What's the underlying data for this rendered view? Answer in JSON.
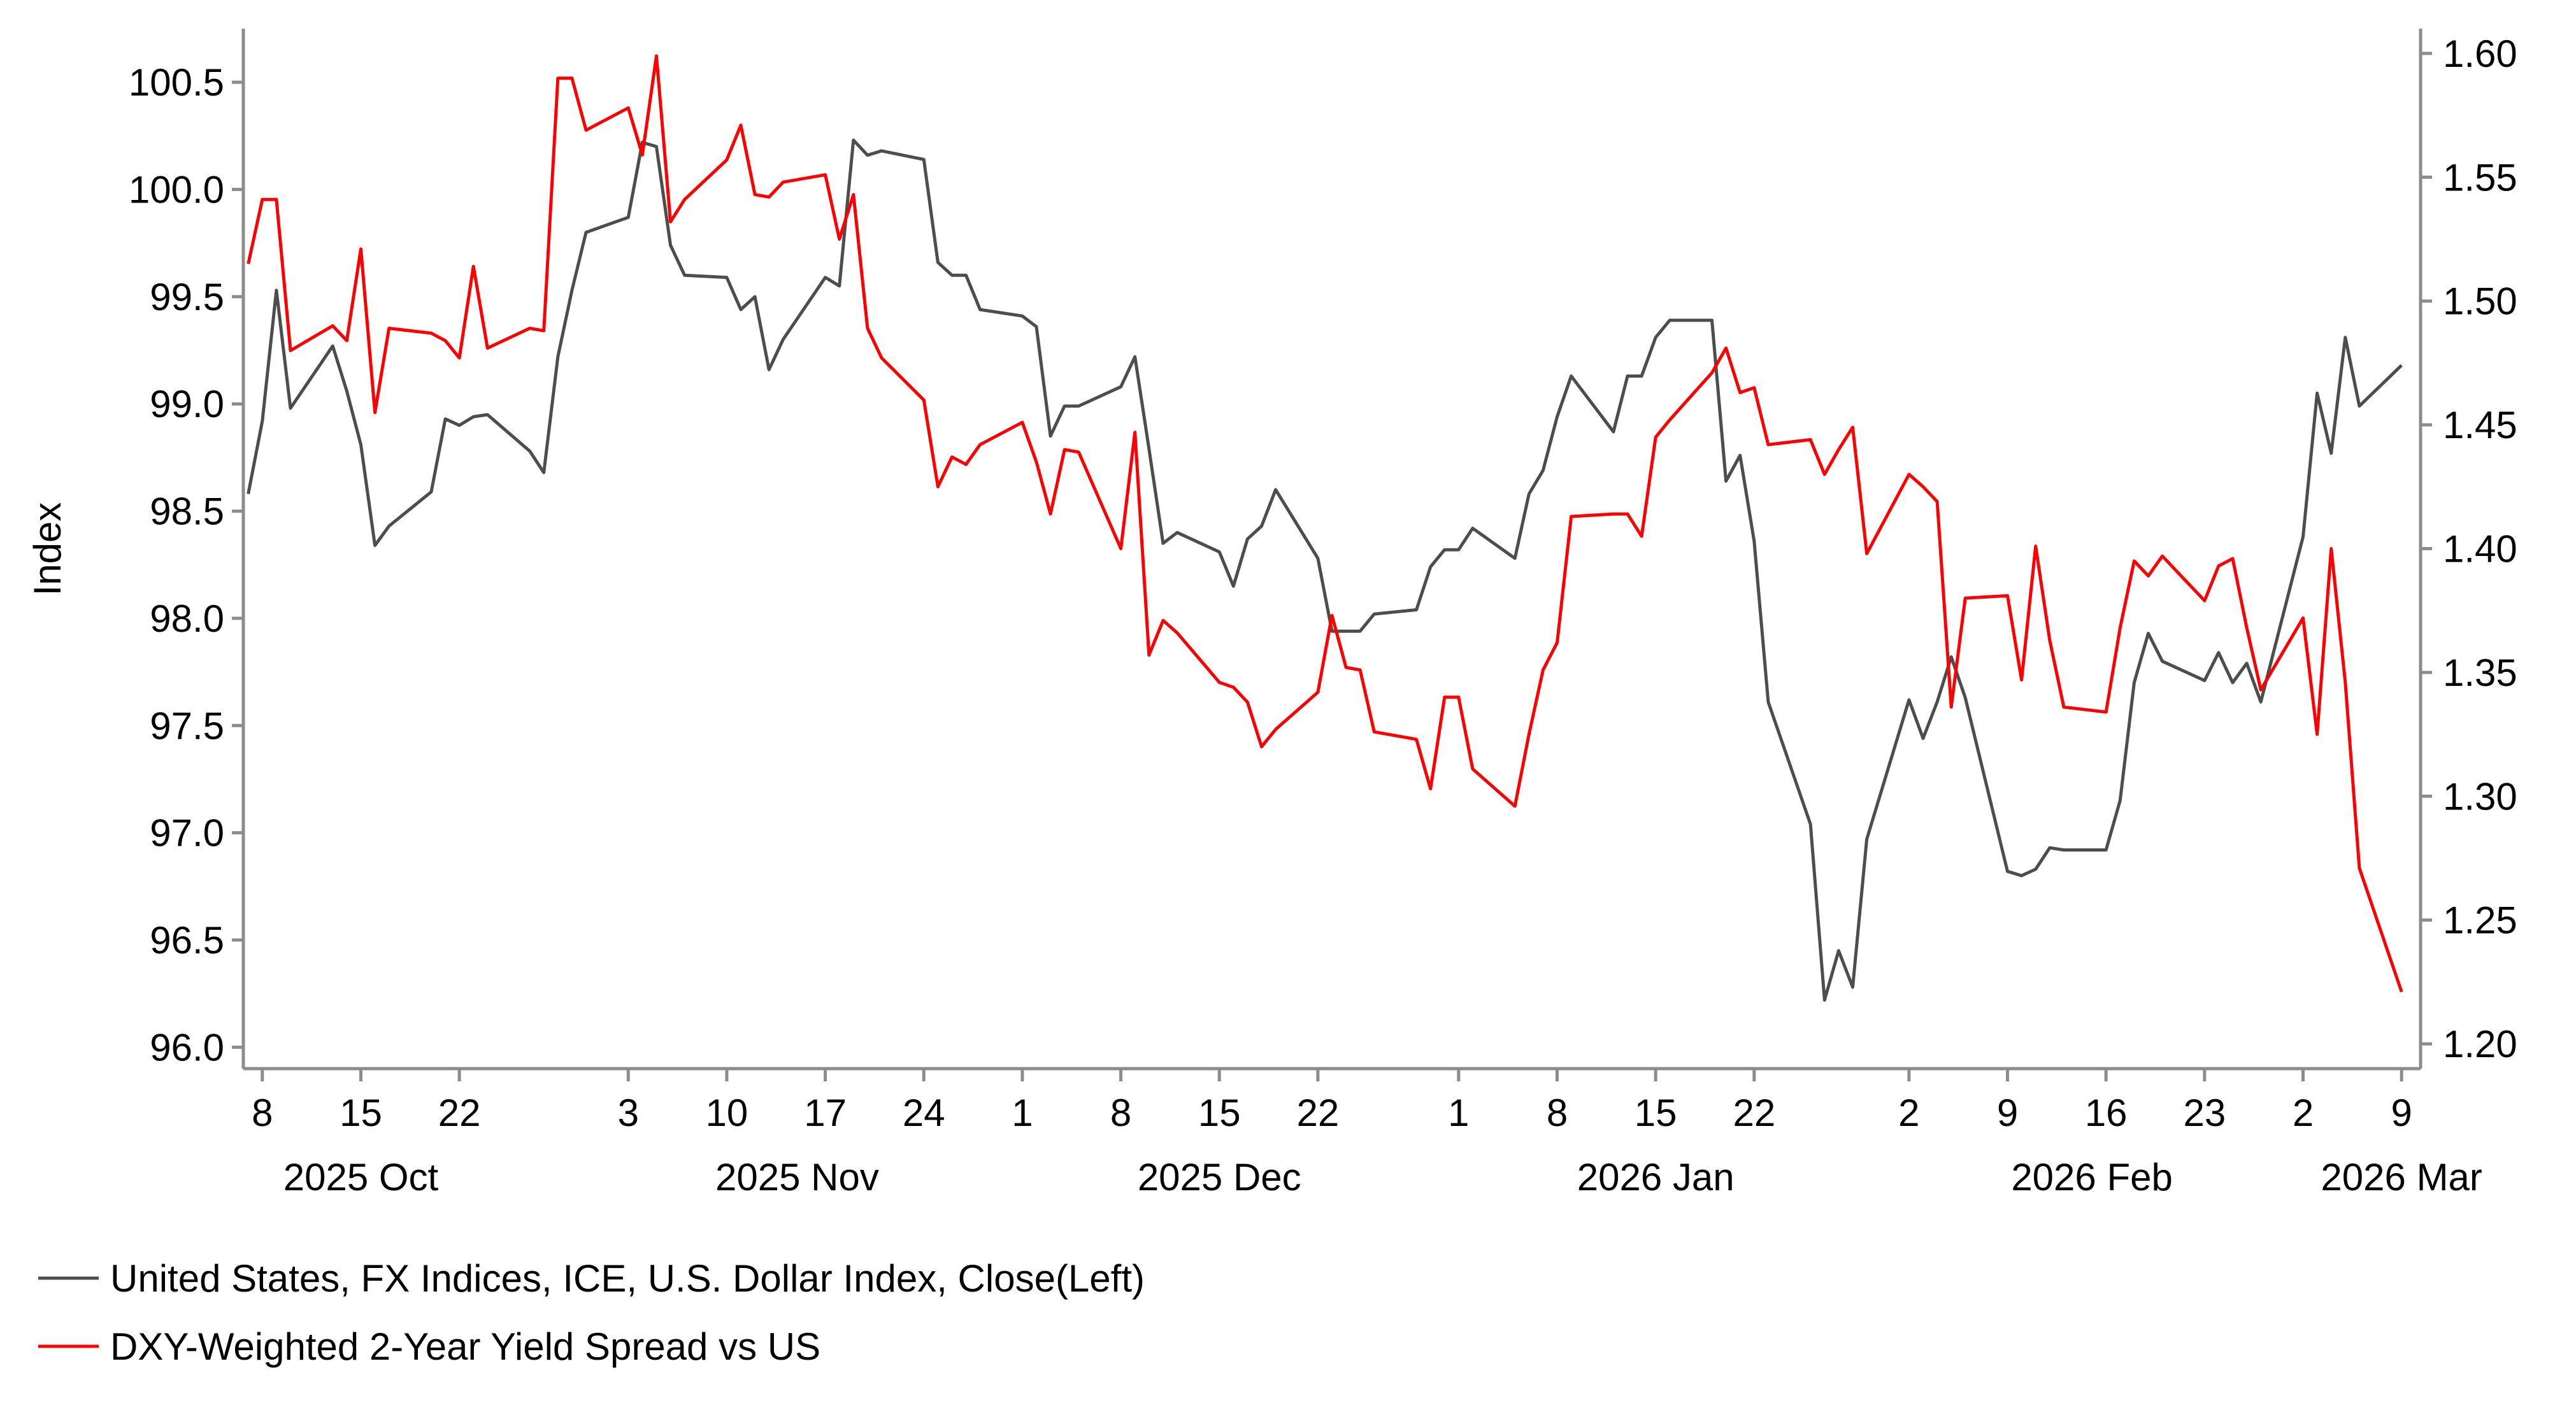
{
  "chart_data": {
    "type": "line",
    "left_axis": {
      "label": "Index",
      "ylim": [
        95.9,
        100.75
      ],
      "ticks": [
        "96.0",
        "96.5",
        "97.0",
        "97.5",
        "98.0",
        "98.5",
        "99.0",
        "99.5",
        "100.0",
        "100.5"
      ]
    },
    "right_axis": {
      "ylim": [
        1.19,
        1.61
      ],
      "ticks": [
        "1.20",
        "1.25",
        "1.30",
        "1.35",
        "1.40",
        "1.45",
        "1.50",
        "1.55",
        "1.60"
      ]
    },
    "x_axis": {
      "range": [
        "2025-10-07",
        "2026-03-10"
      ],
      "day_ticks": [
        {
          "date": "2025-10-08",
          "label": "8"
        },
        {
          "date": "2025-10-15",
          "label": "15"
        },
        {
          "date": "2025-10-22",
          "label": "22"
        },
        {
          "date": "2025-11-03",
          "label": "3"
        },
        {
          "date": "2025-11-10",
          "label": "10"
        },
        {
          "date": "2025-11-17",
          "label": "17"
        },
        {
          "date": "2025-11-24",
          "label": "24"
        },
        {
          "date": "2025-12-01",
          "label": "1"
        },
        {
          "date": "2025-12-08",
          "label": "8"
        },
        {
          "date": "2025-12-15",
          "label": "15"
        },
        {
          "date": "2025-12-22",
          "label": "22"
        },
        {
          "date": "2026-01-01",
          "label": "1"
        },
        {
          "date": "2026-01-08",
          "label": "8"
        },
        {
          "date": "2026-01-15",
          "label": "15"
        },
        {
          "date": "2026-01-22",
          "label": "22"
        },
        {
          "date": "2026-02-02",
          "label": "2"
        },
        {
          "date": "2026-02-09",
          "label": "9"
        },
        {
          "date": "2026-02-16",
          "label": "16"
        },
        {
          "date": "2026-02-23",
          "label": "23"
        },
        {
          "date": "2026-03-02",
          "label": "2"
        },
        {
          "date": "2026-03-09",
          "label": "9"
        }
      ],
      "month_labels": [
        {
          "date": "2025-10-15",
          "label": "2025 Oct"
        },
        {
          "date": "2025-11-15",
          "label": "2025 Nov"
        },
        {
          "date": "2025-12-15",
          "label": "2025 Dec"
        },
        {
          "date": "2026-01-15",
          "label": "2026 Jan"
        },
        {
          "date": "2026-02-15",
          "label": "2026 Feb"
        },
        {
          "date": "2026-03-09",
          "label": "2026 Mar"
        }
      ]
    },
    "series": [
      {
        "name": "United States, FX Indices, ICE, U.S. Dollar Index, Close(Left)",
        "axis": "left",
        "color": "#4d4d4d",
        "points": [
          [
            "2025-10-07",
            98.58
          ],
          [
            "2025-10-08",
            98.92
          ],
          [
            "2025-10-09",
            99.53
          ],
          [
            "2025-10-10",
            98.98
          ],
          [
            "2025-10-13",
            99.27
          ],
          [
            "2025-10-14",
            99.06
          ],
          [
            "2025-10-15",
            98.81
          ],
          [
            "2025-10-16",
            98.34
          ],
          [
            "2025-10-17",
            98.43
          ],
          [
            "2025-10-20",
            98.59
          ],
          [
            "2025-10-21",
            98.93
          ],
          [
            "2025-10-22",
            98.9
          ],
          [
            "2025-10-23",
            98.94
          ],
          [
            "2025-10-24",
            98.95
          ],
          [
            "2025-10-27",
            98.78
          ],
          [
            "2025-10-28",
            98.68
          ],
          [
            "2025-10-29",
            99.22
          ],
          [
            "2025-10-30",
            99.53
          ],
          [
            "2025-10-31",
            99.8
          ],
          [
            "2025-11-03",
            99.87
          ],
          [
            "2025-11-04",
            100.22
          ],
          [
            "2025-11-05",
            100.2
          ],
          [
            "2025-11-06",
            99.74
          ],
          [
            "2025-11-07",
            99.6
          ],
          [
            "2025-11-10",
            99.59
          ],
          [
            "2025-11-11",
            99.44
          ],
          [
            "2025-11-12",
            99.5
          ],
          [
            "2025-11-13",
            99.16
          ],
          [
            "2025-11-14",
            99.3
          ],
          [
            "2025-11-17",
            99.59
          ],
          [
            "2025-11-18",
            99.55
          ],
          [
            "2025-11-19",
            100.23
          ],
          [
            "2025-11-20",
            100.16
          ],
          [
            "2025-11-21",
            100.18
          ],
          [
            "2025-11-24",
            100.14
          ],
          [
            "2025-11-25",
            99.66
          ],
          [
            "2025-11-26",
            99.6
          ],
          [
            "2025-11-27",
            99.6
          ],
          [
            "2025-11-28",
            99.44
          ],
          [
            "2025-12-01",
            99.41
          ],
          [
            "2025-12-02",
            99.36
          ],
          [
            "2025-12-03",
            98.85
          ],
          [
            "2025-12-04",
            98.99
          ],
          [
            "2025-12-05",
            98.99
          ],
          [
            "2025-12-08",
            99.08
          ],
          [
            "2025-12-09",
            99.22
          ],
          [
            "2025-12-10",
            98.79
          ],
          [
            "2025-12-11",
            98.35
          ],
          [
            "2025-12-12",
            98.4
          ],
          [
            "2025-12-15",
            98.31
          ],
          [
            "2025-12-16",
            98.15
          ],
          [
            "2025-12-17",
            98.37
          ],
          [
            "2025-12-18",
            98.43
          ],
          [
            "2025-12-19",
            98.6
          ],
          [
            "2025-12-22",
            98.28
          ],
          [
            "2025-12-23",
            97.94
          ],
          [
            "2025-12-24",
            97.94
          ],
          [
            "2025-12-25",
            97.94
          ],
          [
            "2025-12-26",
            98.02
          ],
          [
            "2025-12-29",
            98.04
          ],
          [
            "2025-12-30",
            98.24
          ],
          [
            "2025-12-31",
            98.32
          ],
          [
            "2026-01-01",
            98.32
          ],
          [
            "2026-01-02",
            98.42
          ],
          [
            "2026-01-05",
            98.28
          ],
          [
            "2026-01-06",
            98.58
          ],
          [
            "2026-01-07",
            98.69
          ],
          [
            "2026-01-08",
            98.94
          ],
          [
            "2026-01-09",
            99.13
          ],
          [
            "2026-01-12",
            98.87
          ],
          [
            "2026-01-13",
            99.13
          ],
          [
            "2026-01-14",
            99.13
          ],
          [
            "2026-01-15",
            99.31
          ],
          [
            "2026-01-16",
            99.39
          ],
          [
            "2026-01-19",
            99.39
          ],
          [
            "2026-01-20",
            98.64
          ],
          [
            "2026-01-21",
            98.76
          ],
          [
            "2026-01-22",
            98.36
          ],
          [
            "2026-01-23",
            97.61
          ],
          [
            "2026-01-26",
            97.04
          ],
          [
            "2026-01-27",
            96.22
          ],
          [
            "2026-01-28",
            96.45
          ],
          [
            "2026-01-29",
            96.28
          ],
          [
            "2026-01-30",
            96.97
          ],
          [
            "2026-02-02",
            97.62
          ],
          [
            "2026-02-03",
            97.44
          ],
          [
            "2026-02-04",
            97.61
          ],
          [
            "2026-02-05",
            97.82
          ],
          [
            "2026-02-06",
            97.63
          ],
          [
            "2026-02-09",
            96.82
          ],
          [
            "2026-02-10",
            96.8
          ],
          [
            "2026-02-11",
            96.83
          ],
          [
            "2026-02-12",
            96.93
          ],
          [
            "2026-02-13",
            96.92
          ],
          [
            "2026-02-16",
            96.92
          ],
          [
            "2026-02-17",
            97.15
          ],
          [
            "2026-02-18",
            97.7
          ],
          [
            "2026-02-19",
            97.93
          ],
          [
            "2026-02-20",
            97.8
          ],
          [
            "2026-02-23",
            97.71
          ],
          [
            "2026-02-24",
            97.84
          ],
          [
            "2026-02-25",
            97.7
          ],
          [
            "2026-02-26",
            97.79
          ],
          [
            "2026-02-27",
            97.61
          ],
          [
            "2026-03-02",
            98.38
          ],
          [
            "2026-03-03",
            99.05
          ],
          [
            "2026-03-04",
            98.77
          ],
          [
            "2026-03-05",
            99.31
          ],
          [
            "2026-03-06",
            98.99
          ],
          [
            "2026-03-09",
            99.18
          ]
        ]
      },
      {
        "name": "DXY-Weighted 2-Year Yield Spread vs US",
        "axis": "right",
        "color": "#ff0000",
        "points": [
          [
            "2025-10-07",
            1.515
          ],
          [
            "2025-10-08",
            1.541
          ],
          [
            "2025-10-09",
            1.541
          ],
          [
            "2025-10-10",
            1.48
          ],
          [
            "2025-10-13",
            1.49
          ],
          [
            "2025-10-14",
            1.484
          ],
          [
            "2025-10-15",
            1.521
          ],
          [
            "2025-10-16",
            1.455
          ],
          [
            "2025-10-17",
            1.489
          ],
          [
            "2025-10-20",
            1.487
          ],
          [
            "2025-10-21",
            1.484
          ],
          [
            "2025-10-22",
            1.477
          ],
          [
            "2025-10-23",
            1.514
          ],
          [
            "2025-10-24",
            1.481
          ],
          [
            "2025-10-27",
            1.489
          ],
          [
            "2025-10-28",
            1.488
          ],
          [
            "2025-10-29",
            1.59
          ],
          [
            "2025-10-30",
            1.59
          ],
          [
            "2025-10-31",
            1.569
          ],
          [
            "2025-11-03",
            1.578
          ],
          [
            "2025-11-04",
            1.559
          ],
          [
            "2025-11-05",
            1.599
          ],
          [
            "2025-11-06",
            1.532
          ],
          [
            "2025-11-07",
            1.541
          ],
          [
            "2025-11-10",
            1.557
          ],
          [
            "2025-11-11",
            1.571
          ],
          [
            "2025-11-12",
            1.543
          ],
          [
            "2025-11-13",
            1.542
          ],
          [
            "2025-11-14",
            1.548
          ],
          [
            "2025-11-17",
            1.551
          ],
          [
            "2025-11-18",
            1.525
          ],
          [
            "2025-11-19",
            1.543
          ],
          [
            "2025-11-20",
            1.489
          ],
          [
            "2025-11-21",
            1.477
          ],
          [
            "2025-11-24",
            1.46
          ],
          [
            "2025-11-25",
            1.425
          ],
          [
            "2025-11-26",
            1.437
          ],
          [
            "2025-11-27",
            1.434
          ],
          [
            "2025-11-28",
            1.442
          ],
          [
            "2025-12-01",
            1.451
          ],
          [
            "2025-12-02",
            1.435
          ],
          [
            "2025-12-03",
            1.414
          ],
          [
            "2025-12-04",
            1.44
          ],
          [
            "2025-12-05",
            1.439
          ],
          [
            "2025-12-08",
            1.4
          ],
          [
            "2025-12-09",
            1.447
          ],
          [
            "2025-12-10",
            1.357
          ],
          [
            "2025-12-11",
            1.371
          ],
          [
            "2025-12-12",
            1.366
          ],
          [
            "2025-12-15",
            1.346
          ],
          [
            "2025-12-16",
            1.344
          ],
          [
            "2025-12-17",
            1.338
          ],
          [
            "2025-12-18",
            1.32
          ],
          [
            "2025-12-19",
            1.327
          ],
          [
            "2025-12-22",
            1.342
          ],
          [
            "2025-12-23",
            1.373
          ],
          [
            "2025-12-24",
            1.352
          ],
          [
            "2025-12-25",
            1.351
          ],
          [
            "2025-12-26",
            1.326
          ],
          [
            "2025-12-29",
            1.323
          ],
          [
            "2025-12-30",
            1.303
          ],
          [
            "2025-12-31",
            1.34
          ],
          [
            "2026-01-01",
            1.34
          ],
          [
            "2026-01-02",
            1.311
          ],
          [
            "2026-01-05",
            1.296
          ],
          [
            "2026-01-06",
            1.325
          ],
          [
            "2026-01-07",
            1.351
          ],
          [
            "2026-01-08",
            1.362
          ],
          [
            "2026-01-09",
            1.413
          ],
          [
            "2026-01-12",
            1.414
          ],
          [
            "2026-01-13",
            1.414
          ],
          [
            "2026-01-14",
            1.405
          ],
          [
            "2026-01-15",
            1.445
          ],
          [
            "2026-01-16",
            1.452
          ],
          [
            "2026-01-19",
            1.471
          ],
          [
            "2026-01-20",
            1.481
          ],
          [
            "2026-01-21",
            1.463
          ],
          [
            "2026-01-22",
            1.465
          ],
          [
            "2026-01-23",
            1.442
          ],
          [
            "2026-01-26",
            1.444
          ],
          [
            "2026-01-27",
            1.43
          ],
          [
            "2026-01-28",
            1.44
          ],
          [
            "2026-01-29",
            1.449
          ],
          [
            "2026-01-30",
            1.398
          ],
          [
            "2026-02-02",
            1.43
          ],
          [
            "2026-02-03",
            1.425
          ],
          [
            "2026-02-04",
            1.419
          ],
          [
            "2026-02-05",
            1.336
          ],
          [
            "2026-02-06",
            1.38
          ],
          [
            "2026-02-09",
            1.381
          ],
          [
            "2026-02-10",
            1.347
          ],
          [
            "2026-02-11",
            1.401
          ],
          [
            "2026-02-12",
            1.363
          ],
          [
            "2026-02-13",
            1.336
          ],
          [
            "2026-02-16",
            1.334
          ],
          [
            "2026-02-17",
            1.368
          ],
          [
            "2026-02-18",
            1.395
          ],
          [
            "2026-02-19",
            1.389
          ],
          [
            "2026-02-20",
            1.397
          ],
          [
            "2026-02-23",
            1.379
          ],
          [
            "2026-02-24",
            1.393
          ],
          [
            "2026-02-25",
            1.396
          ],
          [
            "2026-02-26",
            1.368
          ],
          [
            "2026-02-27",
            1.343
          ],
          [
            "2026-03-02",
            1.372
          ],
          [
            "2026-03-03",
            1.325
          ],
          [
            "2026-03-04",
            1.4
          ],
          [
            "2026-03-05",
            1.346
          ],
          [
            "2026-03-06",
            1.271
          ],
          [
            "2026-03-09",
            1.221
          ]
        ]
      }
    ],
    "legend": [
      {
        "label": "United States, FX Indices, ICE, U.S. Dollar Index, Close(Left)",
        "color": "#4d4d4d"
      },
      {
        "label": "DXY-Weighted 2-Year Yield Spread vs US",
        "color": "#ff0000"
      }
    ]
  }
}
